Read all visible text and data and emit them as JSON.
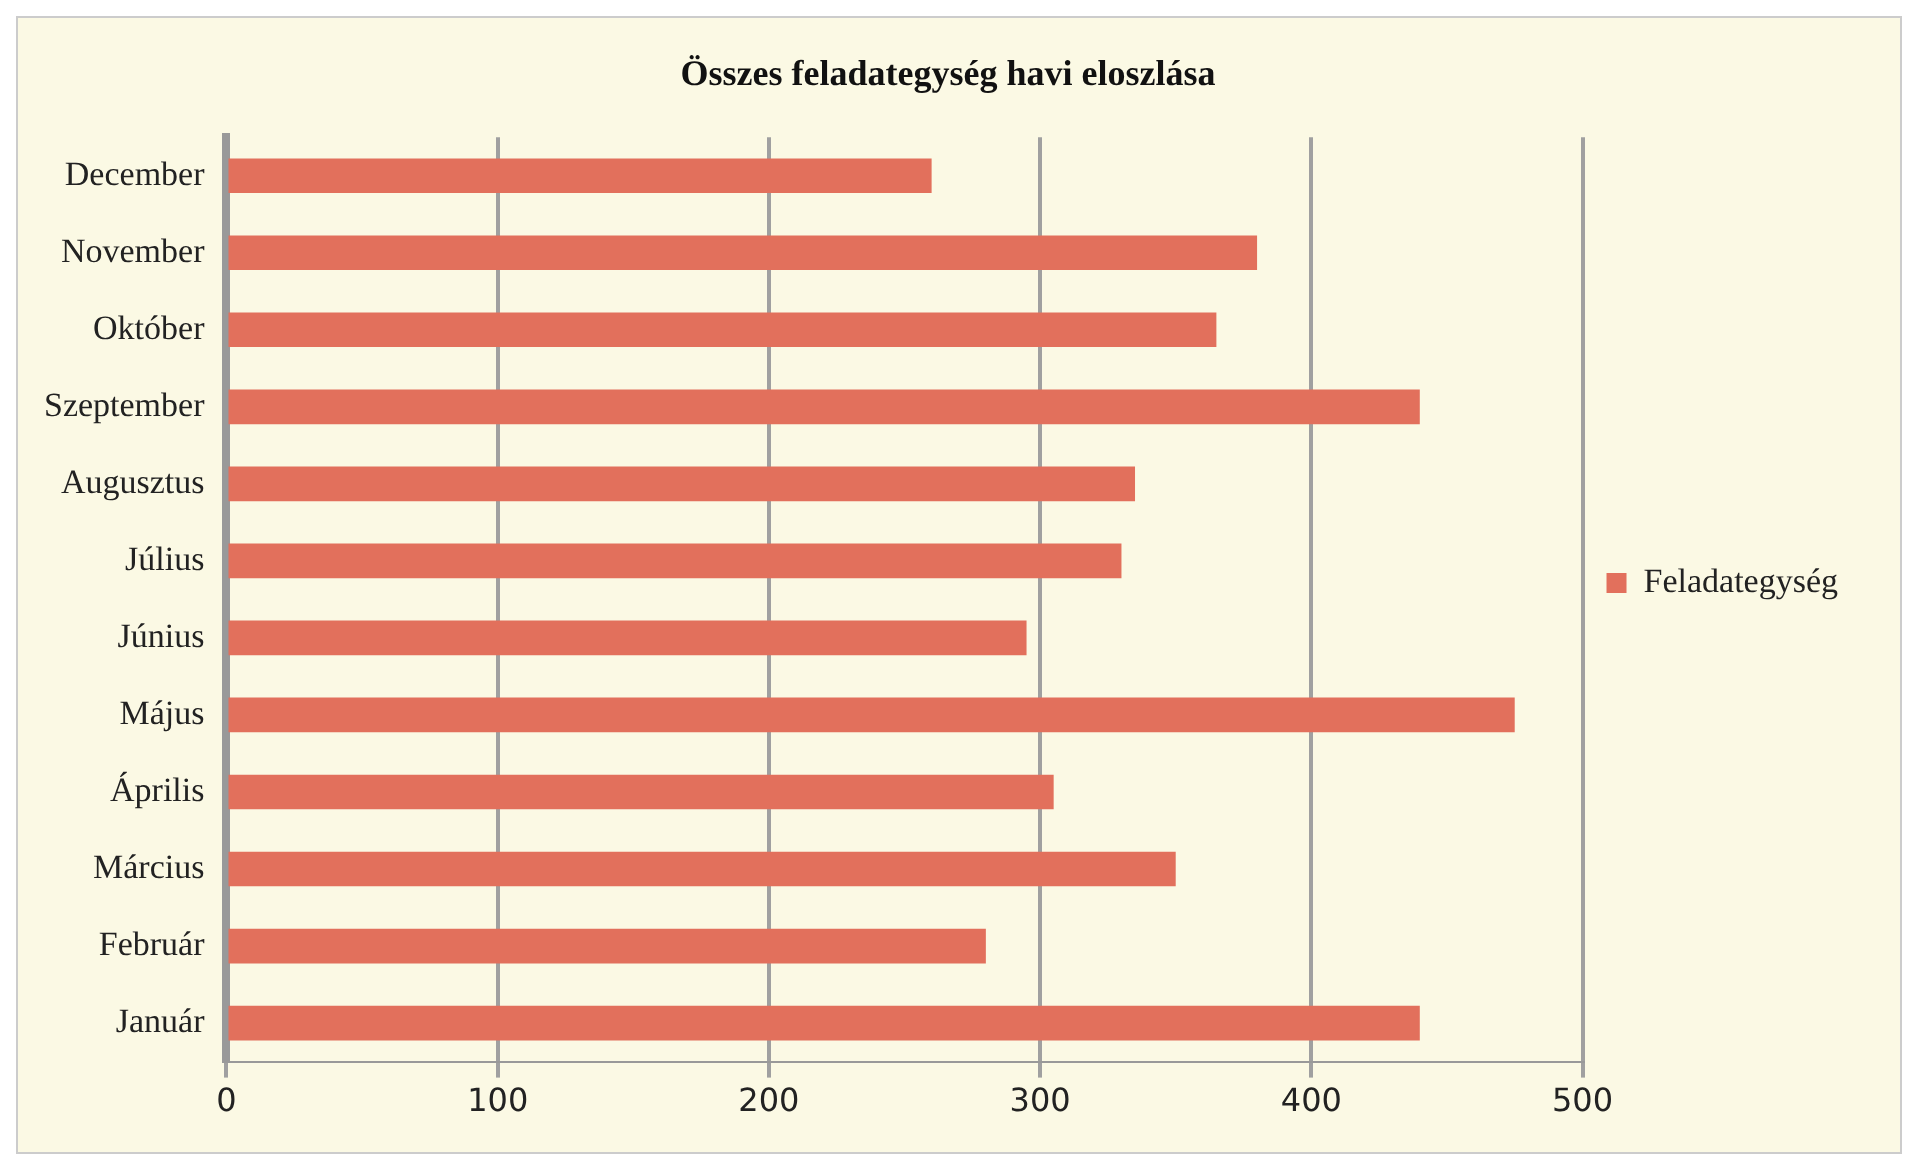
{
  "chart_data": {
    "type": "bar",
    "orientation": "horizontal",
    "title": "Összes feladategység havi eloszlása",
    "categories": [
      "December",
      "November",
      "Október",
      "Szeptember",
      "Augusztus",
      "Július",
      "Június",
      "Május",
      "Április",
      "Március",
      "Február",
      "Január"
    ],
    "series": [
      {
        "name": "Feladategység",
        "color": "#e2705c",
        "values": [
          260,
          380,
          365,
          440,
          335,
          330,
          295,
          475,
          305,
          350,
          280,
          440
        ]
      }
    ],
    "xlim": [
      0,
      500
    ],
    "xticks": [
      0,
      100,
      200,
      300,
      400,
      500
    ],
    "grid": "x",
    "legend": "right"
  }
}
